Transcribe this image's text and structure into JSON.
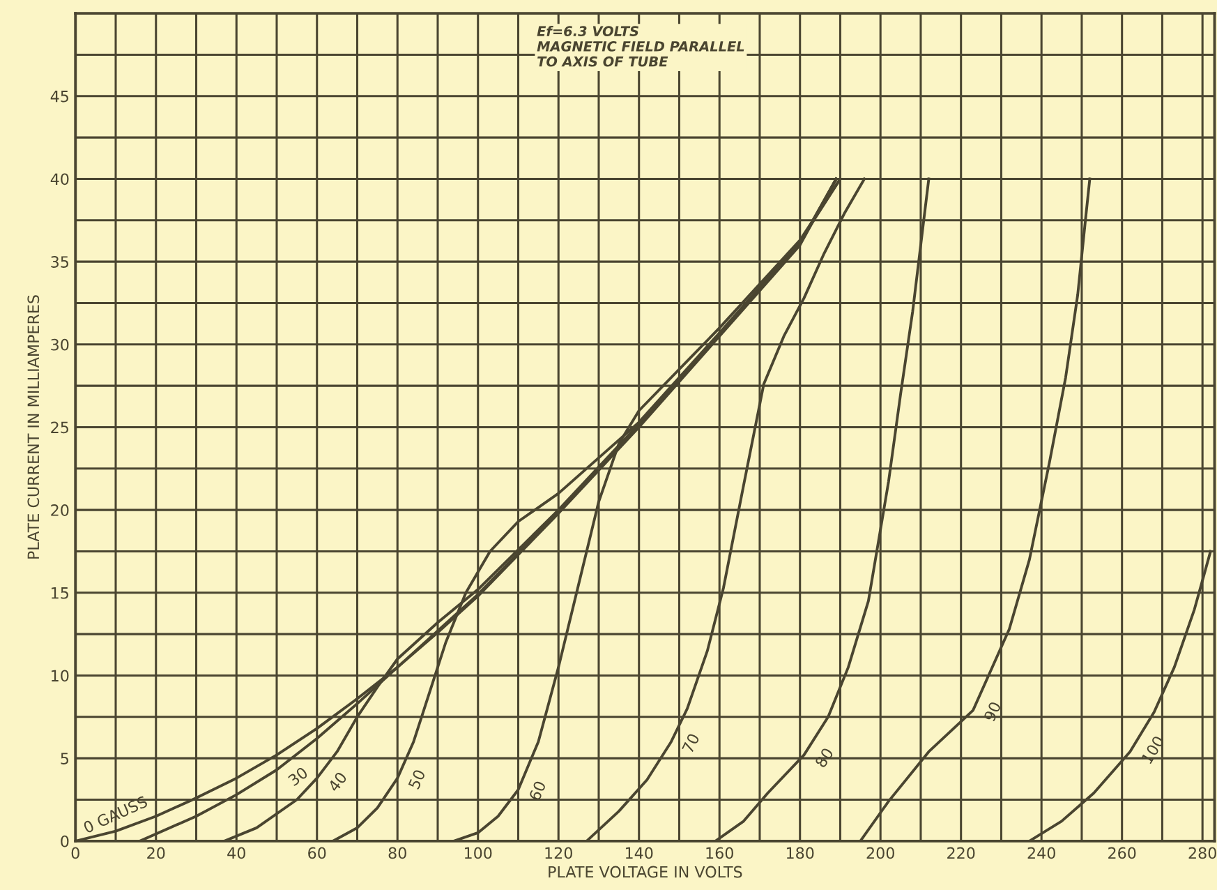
{
  "chart_data": {
    "type": "line",
    "xlabel": "PLATE VOLTAGE IN VOLTS",
    "ylabel": "PLATE CURRENT IN MILLIAMPERES",
    "annotations": [
      "Ef=6.3 VOLTS\nMAGNETIC FIELD PARALLEL\nTO AXIS OF TUBE"
    ],
    "xlim": [
      0,
      283
    ],
    "ylim": [
      0,
      50
    ],
    "xticks": [
      0,
      {
        "value": 10,
        "label": null
      },
      20,
      {
        "value": 30,
        "label": null
      },
      40,
      {
        "value": 50,
        "label": null
      },
      60,
      {
        "value": 70,
        "label": null
      },
      80,
      {
        "value": 90,
        "label": null
      },
      100,
      {
        "value": 110,
        "label": null
      },
      120,
      {
        "value": 130,
        "label": null
      },
      140,
      {
        "value": 150,
        "label": null
      },
      160,
      {
        "value": 170,
        "label": null
      },
      180,
      {
        "value": 190,
        "label": null
      },
      200,
      {
        "value": 210,
        "label": null
      },
      220,
      {
        "value": 230,
        "label": null
      },
      240,
      {
        "value": 250,
        "label": null
      },
      260,
      {
        "value": 270,
        "label": null
      },
      280
    ],
    "yticks": [
      0,
      {
        "value": 2.5,
        "label": null
      },
      5,
      {
        "value": 7.5,
        "label": null
      },
      10,
      {
        "value": 12.5,
        "label": null
      },
      15,
      {
        "value": 17.5,
        "label": null
      },
      20,
      {
        "value": 22.5,
        "label": null
      },
      25,
      {
        "value": 27.5,
        "label": null
      },
      30,
      {
        "value": 32.5,
        "label": null
      },
      35,
      {
        "value": 37.5,
        "label": null
      },
      40,
      {
        "value": 42.5,
        "label": null
      },
      45,
      {
        "value": 47.5,
        "label": null
      }
    ],
    "grid": true,
    "legend": false,
    "marker": "none",
    "line_style": "solid",
    "series": [
      {
        "name": "0 GAUSS",
        "color": "#4a4530",
        "x": [
          0,
          10,
          20,
          30,
          40,
          50,
          60,
          70,
          80,
          90,
          100,
          120,
          140,
          160,
          180,
          189
        ],
        "values": [
          0,
          0.6,
          1.5,
          2.6,
          3.8,
          5.2,
          6.8,
          8.6,
          10.5,
          12.6,
          14.8,
          19.8,
          25,
          30.5,
          36,
          40
        ]
      },
      {
        "name": "30",
        "color": "#4a4530",
        "x": [
          16,
          30,
          40,
          50,
          60,
          70,
          80,
          90,
          100,
          120,
          140,
          160,
          180,
          189
        ],
        "values": [
          0,
          1.5,
          2.8,
          4.3,
          6.2,
          8.3,
          10.5,
          12.7,
          14.9,
          19.9,
          25.1,
          30.6,
          36.1,
          40
        ]
      },
      {
        "name": "40",
        "color": "#4a4530",
        "x": [
          37,
          45,
          55,
          60,
          65,
          70,
          75,
          80,
          90,
          100,
          120,
          140,
          160,
          180,
          189
        ],
        "values": [
          0,
          0.8,
          2.5,
          3.8,
          5.4,
          7.5,
          9.3,
          11,
          13.2,
          15.2,
          20,
          25.2,
          30.6,
          36.1,
          40
        ]
      },
      {
        "name": "50",
        "color": "#4a4530",
        "x": [
          64,
          70,
          75,
          80,
          84,
          88,
          92,
          97,
          103,
          110,
          120,
          140,
          160,
          180,
          190
        ],
        "values": [
          0,
          0.8,
          2,
          3.8,
          6,
          9,
          12,
          15,
          17.5,
          19.3,
          21,
          25.3,
          30.7,
          36.2,
          40
        ]
      },
      {
        "name": "60",
        "color": "#4a4530",
        "x": [
          94,
          100,
          105,
          110,
          115,
          120,
          125,
          130,
          135,
          140,
          160,
          180,
          190
        ],
        "values": [
          0,
          0.5,
          1.5,
          3.1,
          6,
          10.5,
          15.5,
          20.5,
          24,
          26,
          31,
          36.3,
          40
        ]
      },
      {
        "name": "70",
        "color": "#4a4530",
        "x": [
          127,
          135,
          142,
          148,
          152,
          157,
          161,
          166,
          171,
          176,
          181,
          186,
          191,
          196
        ],
        "values": [
          0,
          1.8,
          3.7,
          6,
          8,
          11.5,
          15.3,
          21.5,
          27.6,
          30.5,
          32.8,
          35.5,
          37.9,
          40
        ]
      },
      {
        "name": "80",
        "color": "#4a4530",
        "x": [
          159,
          166,
          172,
          181,
          187,
          192,
          197,
          202,
          205,
          208,
          212
        ],
        "values": [
          0,
          1.2,
          2.9,
          5.2,
          7.5,
          10.5,
          14.5,
          21.7,
          27,
          32,
          40
        ]
      },
      {
        "name": "90",
        "color": "#4a4530",
        "x": [
          195,
          202,
          212,
          223,
          232,
          237,
          242,
          246,
          249,
          251,
          252
        ],
        "values": [
          0,
          2.4,
          5.4,
          7.9,
          12.8,
          17,
          22.9,
          28,
          33,
          37.7,
          40
        ]
      },
      {
        "name": "100",
        "color": "#4a4530",
        "x": [
          237,
          245,
          253,
          262,
          268,
          273,
          278,
          282
        ],
        "values": [
          0,
          1.2,
          2.9,
          5.4,
          7.8,
          10.5,
          14,
          17.5
        ]
      }
    ]
  }
}
